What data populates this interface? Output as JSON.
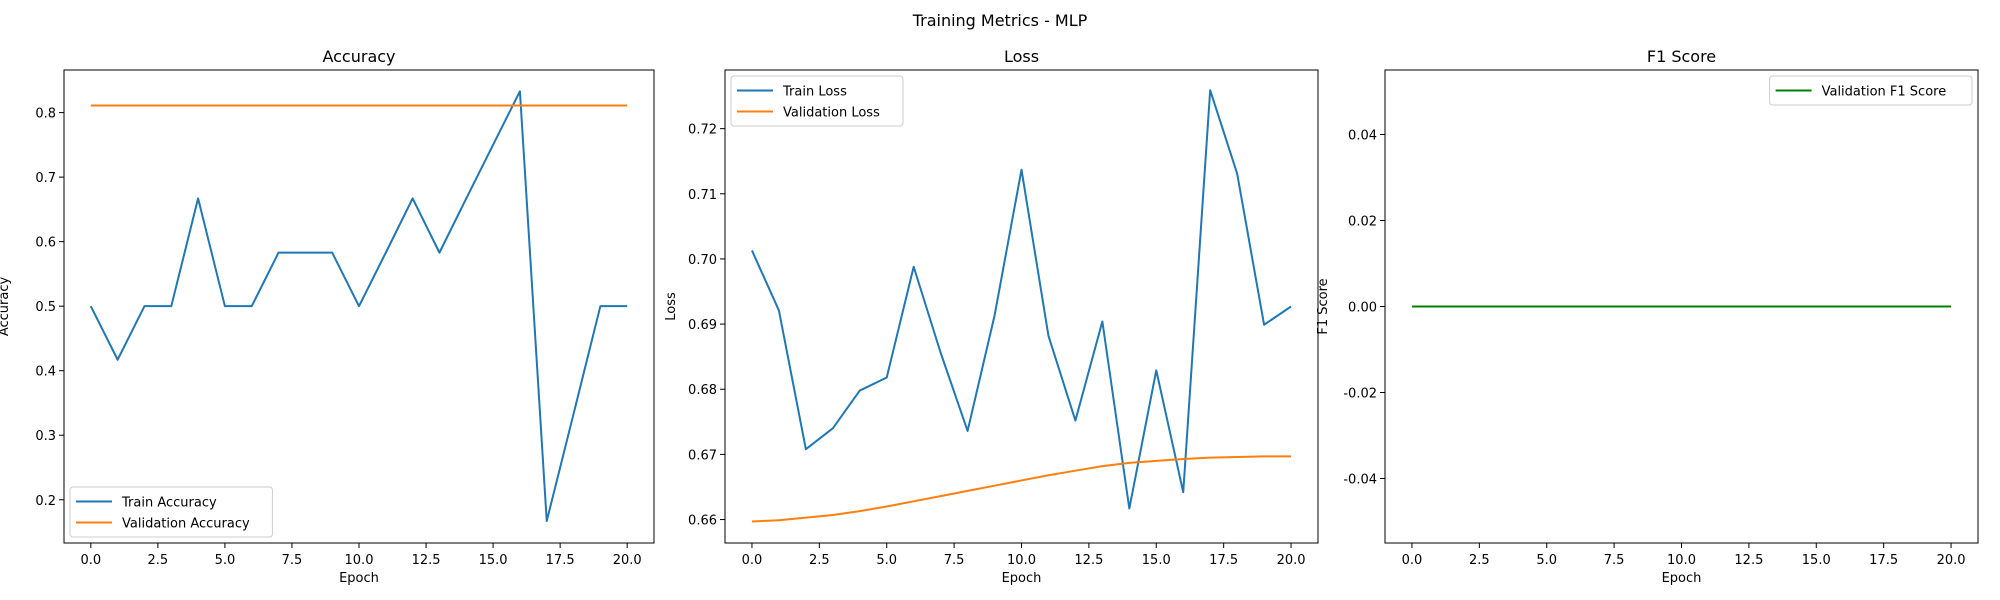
{
  "figure_title": "Training Metrics - MLP",
  "chart_data": [
    {
      "type": "line",
      "title": "Accuracy",
      "xlabel": "Epoch",
      "ylabel": "Accuracy",
      "xlim": [
        -1,
        21
      ],
      "ylim": [
        0.133,
        0.866
      ],
      "xticks": [
        0.0,
        2.5,
        5.0,
        7.5,
        10.0,
        12.5,
        15.0,
        17.5,
        20.0
      ],
      "yticks": [
        0.2,
        0.3,
        0.4,
        0.5,
        0.6,
        0.7,
        0.8
      ],
      "tick_decimals": 1,
      "legend_position": "lower-left",
      "x": [
        0,
        1,
        2,
        3,
        4,
        5,
        6,
        7,
        8,
        9,
        10,
        11,
        12,
        13,
        14,
        15,
        16,
        17,
        18,
        19,
        20
      ],
      "series": [
        {
          "name": "Train Accuracy",
          "color": "#1f77b4",
          "values": [
            0.5,
            0.417,
            0.5,
            0.5,
            0.667,
            0.5,
            0.5,
            0.583,
            0.583,
            0.583,
            0.5,
            0.583,
            0.667,
            0.583,
            0.667,
            0.75,
            0.833,
            0.167,
            0.333,
            0.5,
            0.5
          ]
        },
        {
          "name": "Validation Accuracy",
          "color": "#ff7f0e",
          "values": [
            0.811,
            0.811,
            0.811,
            0.811,
            0.811,
            0.811,
            0.811,
            0.811,
            0.811,
            0.811,
            0.811,
            0.811,
            0.811,
            0.811,
            0.811,
            0.811,
            0.811,
            0.811,
            0.811,
            0.811,
            0.811
          ]
        }
      ]
    },
    {
      "type": "line",
      "title": "Loss",
      "xlabel": "Epoch",
      "ylabel": "Loss",
      "xlim": [
        -1,
        21
      ],
      "ylim": [
        0.6564,
        0.729
      ],
      "xticks": [
        0.0,
        2.5,
        5.0,
        7.5,
        10.0,
        12.5,
        15.0,
        17.5,
        20.0
      ],
      "yticks": [
        0.66,
        0.67,
        0.68,
        0.69,
        0.7,
        0.71,
        0.72
      ],
      "tick_decimals": 2,
      "legend_position": "upper-left",
      "x": [
        0,
        1,
        2,
        3,
        4,
        5,
        6,
        7,
        8,
        9,
        10,
        11,
        12,
        13,
        14,
        15,
        16,
        17,
        18,
        19,
        20
      ],
      "series": [
        {
          "name": "Train Loss",
          "color": "#1f77b4",
          "values": [
            0.7013,
            0.6921,
            0.6708,
            0.674,
            0.6798,
            0.6818,
            0.6988,
            0.6856,
            0.6736,
            0.6913,
            0.7137,
            0.6882,
            0.6752,
            0.6904,
            0.6617,
            0.6829,
            0.6642,
            0.7259,
            0.7131,
            0.6899,
            0.6927
          ]
        },
        {
          "name": "Validation Loss",
          "color": "#ff7f0e",
          "values": [
            0.6597,
            0.6599,
            0.6603,
            0.6607,
            0.6613,
            0.662,
            0.6628,
            0.6636,
            0.6644,
            0.6652,
            0.666,
            0.6668,
            0.6675,
            0.6682,
            0.6687,
            0.669,
            0.6693,
            0.6695,
            0.6696,
            0.6697,
            0.6697
          ]
        }
      ]
    },
    {
      "type": "line",
      "title": "F1 Score",
      "xlabel": "Epoch",
      "ylabel": "F1 Score",
      "xlim": [
        -1,
        21
      ],
      "ylim": [
        -0.055,
        0.055
      ],
      "xticks": [
        0.0,
        2.5,
        5.0,
        7.5,
        10.0,
        12.5,
        15.0,
        17.5,
        20.0
      ],
      "yticks": [
        -0.04,
        -0.02,
        0.0,
        0.02,
        0.04
      ],
      "tick_decimals": 2,
      "legend_position": "upper-right",
      "x": [
        0,
        1,
        2,
        3,
        4,
        5,
        6,
        7,
        8,
        9,
        10,
        11,
        12,
        13,
        14,
        15,
        16,
        17,
        18,
        19,
        20
      ],
      "series": [
        {
          "name": "Validation F1 Score",
          "color": "#008000",
          "values": [
            0,
            0,
            0,
            0,
            0,
            0,
            0,
            0,
            0,
            0,
            0,
            0,
            0,
            0,
            0,
            0,
            0,
            0,
            0,
            0,
            0
          ]
        }
      ]
    }
  ]
}
